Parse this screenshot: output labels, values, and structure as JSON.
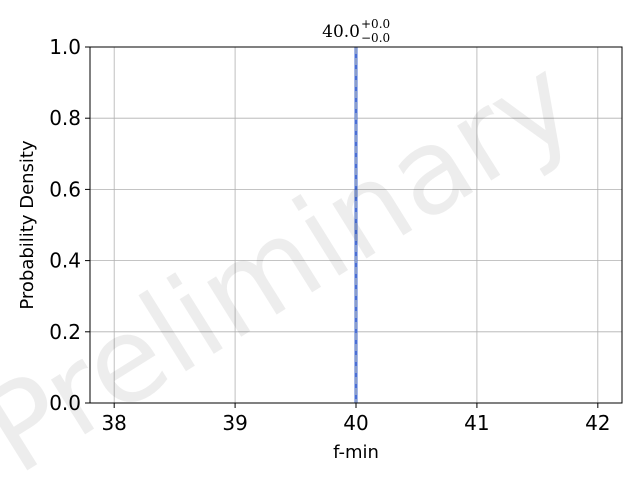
{
  "chart_data": {
    "type": "line",
    "title": "",
    "xlabel": "f-min",
    "ylabel": "Probability Density",
    "xlim": [
      37.8,
      42.2
    ],
    "ylim": [
      0.0,
      1.0
    ],
    "xticks": [
      38,
      39,
      40,
      41,
      42
    ],
    "xtick_labels": [
      "38",
      "39",
      "40",
      "41",
      "42"
    ],
    "yticks": [
      0.0,
      0.2,
      0.4,
      0.6,
      0.8,
      1.0
    ],
    "ytick_labels": [
      "0.0",
      "0.2",
      "0.4",
      "0.6",
      "0.8",
      "1.0"
    ],
    "grid": true,
    "vlines": [
      {
        "x": 40.0,
        "style": "solid",
        "color": "#4a6fd6"
      },
      {
        "x": 40.0,
        "style": "dashed",
        "color": "#9aa9c7"
      }
    ],
    "annotation": {
      "value": "40.0",
      "upper": "+0.0",
      "lower": "−0.0"
    },
    "watermark": "Preliminary"
  }
}
